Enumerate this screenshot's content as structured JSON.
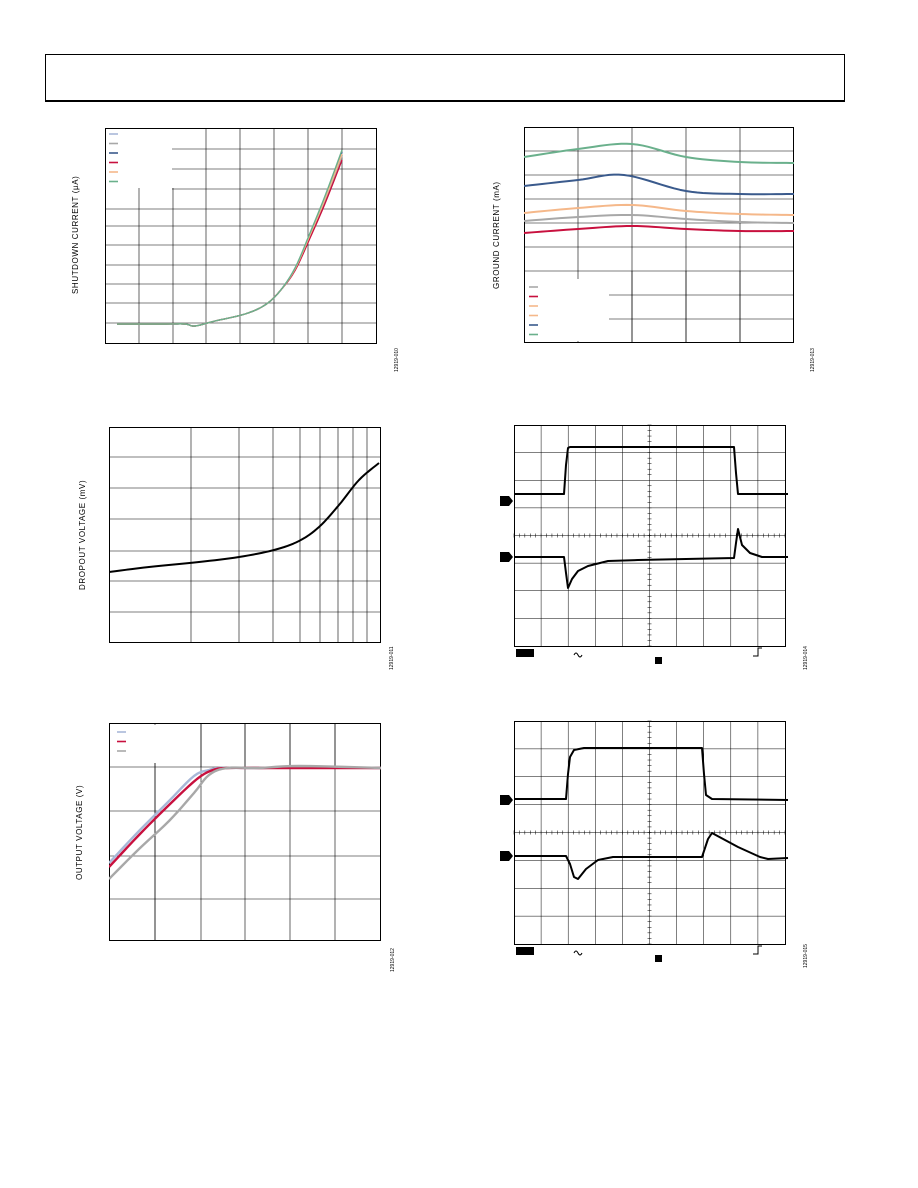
{
  "figures": [
    {
      "id": "shutdown",
      "ylabel": "SHUTDOWN CURRENT (µA)",
      "fig_id": "12919-010",
      "legend_colors": [
        "#a8b8d8",
        "#a8a8a8",
        "#3a5a8c",
        "#c8103e",
        "#f5b88a",
        "#6ab08c"
      ]
    },
    {
      "id": "ground",
      "ylabel": "GROUND CURRENT (mA)",
      "fig_id": "12919-013",
      "legend_colors": [
        "#a8a8a8",
        "#c8103e",
        "#f5b88a",
        "#f5b88a",
        "#3a5a8c",
        "#6ab08c"
      ]
    },
    {
      "id": "dropout",
      "ylabel": "DROPOUT VOLTAGE (mV)",
      "fig_id": "12919-011"
    },
    {
      "id": "scope1",
      "fig_id": "12919-014"
    },
    {
      "id": "output",
      "ylabel": "OUTPUT VOLTAGE (V)",
      "fig_id": "12919-012",
      "legend_colors": [
        "#a8b8d8",
        "#c8103e",
        "#a8a8a8"
      ]
    },
    {
      "id": "scope2",
      "fig_id": "12919-015"
    }
  ]
}
